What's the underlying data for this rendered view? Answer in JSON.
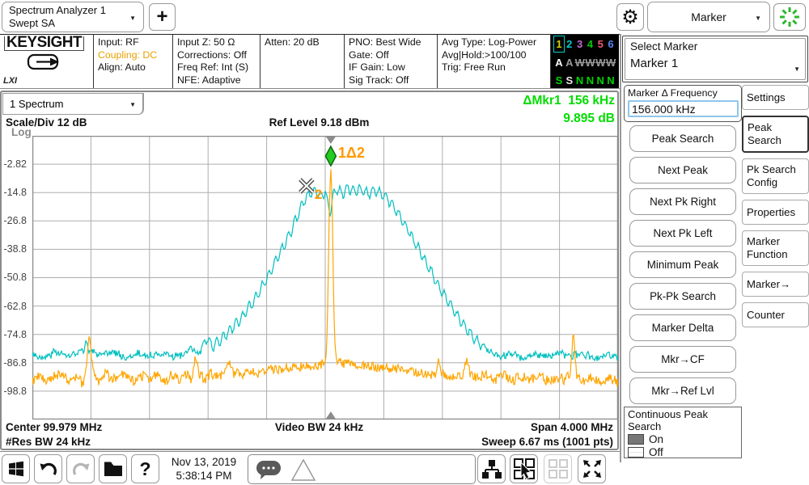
{
  "icons": {
    "caret": "▼",
    "gear": "⚙",
    "plus": "+",
    "help": "?"
  },
  "colors": {
    "trace_cyan": "#00bfbf",
    "trace_orange": "#ffa500",
    "marker_green": "#22cc22",
    "readout_green": "#00dd00",
    "amber_highlight": "#e8a000",
    "grid_gray": "#adadad"
  },
  "app_tab": {
    "line1": "Spectrum Analyzer 1",
    "line2": "Swept SA"
  },
  "mode_menu": {
    "label": "Marker"
  },
  "system_info": {
    "brand": "KEYSIGHT",
    "lxi": "LXI",
    "input_col": [
      "Input: RF",
      "Coupling: DC",
      "Align: Auto"
    ],
    "inputz_col": [
      "Input Z: 50 Ω",
      "Corrections: Off",
      "Freq Ref: Int (S)",
      "NFE: Adaptive"
    ],
    "atten_col": [
      "Atten: 20 dB"
    ],
    "pno_col": [
      "PNO: Best Wide",
      "Gate: Off",
      "IF Gain: Low",
      "Sig Track: Off"
    ],
    "avg_col": [
      "Avg Type: Log-Power",
      "Avg|Hold:>100/100",
      "Trig: Free Run"
    ]
  },
  "trace_legend": {
    "numbers": [
      {
        "t": "1",
        "c": "#d4d400",
        "boxed": true
      },
      {
        "t": "2",
        "c": "#00cccc"
      },
      {
        "t": "3",
        "c": "#c06ad0"
      },
      {
        "t": "4",
        "c": "#00cc00"
      },
      {
        "t": "5",
        "c": "#f05878"
      },
      {
        "t": "6",
        "c": "#5886f0"
      }
    ],
    "row2": [
      {
        "t": "A",
        "c": "#ffffff"
      },
      {
        "t": "A",
        "c": "#9a9a9a"
      },
      {
        "t": "W",
        "c": "#9a9a9a",
        "strike": true
      },
      {
        "t": "W",
        "c": "#9a9a9a",
        "strike": true
      },
      {
        "t": "W",
        "c": "#9a9a9a",
        "strike": true
      },
      {
        "t": "W",
        "c": "#9a9a9a",
        "strike": true
      }
    ],
    "row3": [
      {
        "t": "S",
        "c": "#00d400"
      },
      {
        "t": "S",
        "c": "#e8e8e8"
      },
      {
        "t": "N",
        "c": "#00d400"
      },
      {
        "t": "N",
        "c": "#00d400"
      },
      {
        "t": "N",
        "c": "#00d400"
      },
      {
        "t": "N",
        "c": "#00d400"
      }
    ]
  },
  "spectrum_window": {
    "trace_selector": "1 Spectrum",
    "scale_div": "Scale/Div 12 dB",
    "ref_level": "Ref Level 9.18 dBm",
    "delta_marker": {
      "name": "ΔMkr1",
      "freq": "156 kHz",
      "amp": "9.895 dB"
    },
    "footer": {
      "center": "Center 99.979 MHz",
      "vbw": "Video BW 24 kHz",
      "span": "Span 4.000 MHz",
      "rbw": "#Res BW 24 kHz",
      "sweep": "Sweep 6.67 ms (1001 pts)"
    }
  },
  "chart_data": {
    "type": "line",
    "title": "1 Spectrum",
    "x_axis": {
      "center": "99.979 MHz",
      "span": "4.000 MHz",
      "points": "1001"
    },
    "y_axis": {
      "top_label": "Log",
      "ref_level_dbm": 9.18,
      "db_per_div": 12,
      "divisions": 10,
      "ticks": [
        "-2.82",
        "-14.8",
        "-26.8",
        "-38.8",
        "-50.8",
        "-62.8",
        "-74.8",
        "-86.8",
        "-98.8"
      ]
    },
    "grid": {
      "columns": 10,
      "rows": 10
    },
    "center_indicator_frac": 0.5095,
    "series": [
      {
        "name": "trace2-cyan",
        "color": "#00bfbf",
        "seed": 3,
        "noise_db": 1.4,
        "ripple_db": 2.0,
        "points": [
          [
            0,
            -83
          ],
          [
            0.02,
            -85
          ],
          [
            0.04,
            -82
          ],
          [
            0.06,
            -84
          ],
          [
            0.08,
            -83
          ],
          [
            0.093,
            -79.5
          ],
          [
            0.1,
            -82
          ],
          [
            0.12,
            -84
          ],
          [
            0.14,
            -82
          ],
          [
            0.16,
            -85
          ],
          [
            0.18,
            -83
          ],
          [
            0.2,
            -84
          ],
          [
            0.22,
            -82.5
          ],
          [
            0.24,
            -84
          ],
          [
            0.26,
            -83
          ],
          [
            0.272,
            -81
          ],
          [
            0.285,
            -83
          ],
          [
            0.298,
            -76.5
          ],
          [
            0.308,
            -80
          ],
          [
            0.322,
            -77
          ],
          [
            0.34,
            -72.5
          ],
          [
            0.36,
            -67
          ],
          [
            0.38,
            -60
          ],
          [
            0.4,
            -51
          ],
          [
            0.42,
            -42
          ],
          [
            0.44,
            -32
          ],
          [
            0.452,
            -25
          ],
          [
            0.462,
            -19
          ],
          [
            0.472,
            -15.5
          ],
          [
            0.483,
            -13.8
          ],
          [
            0.492,
            -16.5
          ],
          [
            0.5,
            -14
          ],
          [
            0.508,
            -23.5
          ],
          [
            0.514,
            -15
          ],
          [
            0.521,
            -13.2
          ],
          [
            0.53,
            -15.5
          ],
          [
            0.539,
            -12.9
          ],
          [
            0.549,
            -14.5
          ],
          [
            0.558,
            -13.2
          ],
          [
            0.573,
            -15.2
          ],
          [
            0.588,
            -13.8
          ],
          [
            0.6,
            -16
          ],
          [
            0.612,
            -19
          ],
          [
            0.625,
            -24
          ],
          [
            0.64,
            -30
          ],
          [
            0.66,
            -39
          ],
          [
            0.68,
            -48
          ],
          [
            0.7,
            -57
          ],
          [
            0.72,
            -65
          ],
          [
            0.74,
            -72
          ],
          [
            0.755,
            -76.5
          ],
          [
            0.77,
            -80.5
          ],
          [
            0.785,
            -83
          ],
          [
            0.8,
            -84
          ],
          [
            0.82,
            -83
          ],
          [
            0.84,
            -85
          ],
          [
            0.86,
            -83
          ],
          [
            0.88,
            -84
          ],
          [
            0.9,
            -82.5
          ],
          [
            0.92,
            -84
          ],
          [
            0.94,
            -83
          ],
          [
            0.96,
            -85
          ],
          [
            0.98,
            -83.5
          ],
          [
            1,
            -84
          ]
        ]
      },
      {
        "name": "trace1-orange",
        "color": "#ffa500",
        "seed": 9,
        "noise_db": 2.1,
        "ripple_db": 0.6,
        "points": [
          [
            0,
            -95
          ],
          [
            0.012,
            -92
          ],
          [
            0.024,
            -95.5
          ],
          [
            0.036,
            -92.5
          ],
          [
            0.05,
            -91
          ],
          [
            0.062,
            -95
          ],
          [
            0.074,
            -93
          ],
          [
            0.086,
            -95.5
          ],
          [
            0.092,
            -91
          ],
          [
            0.097,
            -73.5
          ],
          [
            0.103,
            -90
          ],
          [
            0.112,
            -95
          ],
          [
            0.125,
            -91
          ],
          [
            0.137,
            -94
          ],
          [
            0.15,
            -90.5
          ],
          [
            0.162,
            -93.5
          ],
          [
            0.175,
            -95
          ],
          [
            0.187,
            -92
          ],
          [
            0.2,
            -94.5
          ],
          [
            0.212,
            -91
          ],
          [
            0.225,
            -95
          ],
          [
            0.237,
            -92
          ],
          [
            0.25,
            -94
          ],
          [
            0.262,
            -91.5
          ],
          [
            0.272,
            -94
          ],
          [
            0.278,
            -84.5
          ],
          [
            0.285,
            -92
          ],
          [
            0.295,
            -94
          ],
          [
            0.305,
            -91
          ],
          [
            0.315,
            -93
          ],
          [
            0.325,
            -91.5
          ],
          [
            0.332,
            -89.5
          ],
          [
            0.337,
            -85.5
          ],
          [
            0.343,
            -91
          ],
          [
            0.355,
            -92
          ],
          [
            0.37,
            -90.5
          ],
          [
            0.385,
            -91
          ],
          [
            0.4,
            -90
          ],
          [
            0.42,
            -89.5
          ],
          [
            0.44,
            -89
          ],
          [
            0.46,
            -88.7
          ],
          [
            0.48,
            -88.4
          ],
          [
            0.49,
            -88
          ],
          [
            0.497,
            -87.2
          ],
          [
            0.502,
            -84.5
          ],
          [
            0.5045,
            -62
          ],
          [
            0.507,
            -20
          ],
          [
            0.5095,
            -3.6
          ],
          [
            0.512,
            -20
          ],
          [
            0.5145,
            -62
          ],
          [
            0.517,
            -83
          ],
          [
            0.521,
            -86
          ],
          [
            0.53,
            -87.4
          ],
          [
            0.55,
            -87.9
          ],
          [
            0.57,
            -88.2
          ],
          [
            0.59,
            -88.6
          ],
          [
            0.61,
            -89
          ],
          [
            0.63,
            -89.8
          ],
          [
            0.65,
            -90.8
          ],
          [
            0.67,
            -91.4
          ],
          [
            0.687,
            -92
          ],
          [
            0.6925,
            -86.2
          ],
          [
            0.698,
            -92
          ],
          [
            0.71,
            -93
          ],
          [
            0.725,
            -91.8
          ],
          [
            0.735,
            -93
          ],
          [
            0.7415,
            -84.8
          ],
          [
            0.748,
            -92
          ],
          [
            0.76,
            -93.5
          ],
          [
            0.775,
            -91.5
          ],
          [
            0.79,
            -94
          ],
          [
            0.805,
            -92
          ],
          [
            0.82,
            -94.5
          ],
          [
            0.835,
            -92.5
          ],
          [
            0.85,
            -94
          ],
          [
            0.865,
            -92
          ],
          [
            0.88,
            -94.5
          ],
          [
            0.895,
            -93
          ],
          [
            0.91,
            -94
          ],
          [
            0.918,
            -92
          ],
          [
            0.9235,
            -73.6
          ],
          [
            0.929,
            -92
          ],
          [
            0.94,
            -94.5
          ],
          [
            0.955,
            -93
          ],
          [
            0.97,
            -94.5
          ],
          [
            0.985,
            -93
          ],
          [
            1,
            -95
          ]
        ]
      }
    ],
    "markers": [
      {
        "id": "1Δ2",
        "shape": "diamond",
        "color": "#22cc22",
        "x_frac": 0.5095,
        "db": -3.5,
        "label_color": "#ff9900"
      },
      {
        "id": "2",
        "shape": "x",
        "color": "#ffffff",
        "x_frac": 0.468,
        "db": -12,
        "label_color": "#ff9900"
      }
    ]
  },
  "marker_panel": {
    "select_label": "Select Marker",
    "selected_marker": "Marker 1",
    "delta_freq_label": "Marker Δ Frequency",
    "delta_freq_value": "156.000 kHz",
    "buttons": [
      "Peak Search",
      "Next Peak",
      "Next Pk Right",
      "Next Pk Left",
      "Minimum Peak",
      "Pk-Pk Search",
      "Marker Delta",
      "Mkr→CF",
      "Mkr→Ref Lvl"
    ],
    "tabs": [
      {
        "label": "Settings"
      },
      {
        "label": "Peak\nSearch",
        "selected": true
      },
      {
        "label": "Pk Search\nConfig"
      },
      {
        "label": "Properties"
      },
      {
        "label": "Marker\nFunction"
      },
      {
        "label": "Marker→"
      },
      {
        "label": "Counter"
      }
    ],
    "continuous": {
      "title": "Continuous Peak\nSearch",
      "on": "On",
      "off": "Off",
      "state": "On"
    }
  },
  "toolbar": {
    "date": "Nov 13, 2019",
    "time": "5:38:14 PM"
  }
}
